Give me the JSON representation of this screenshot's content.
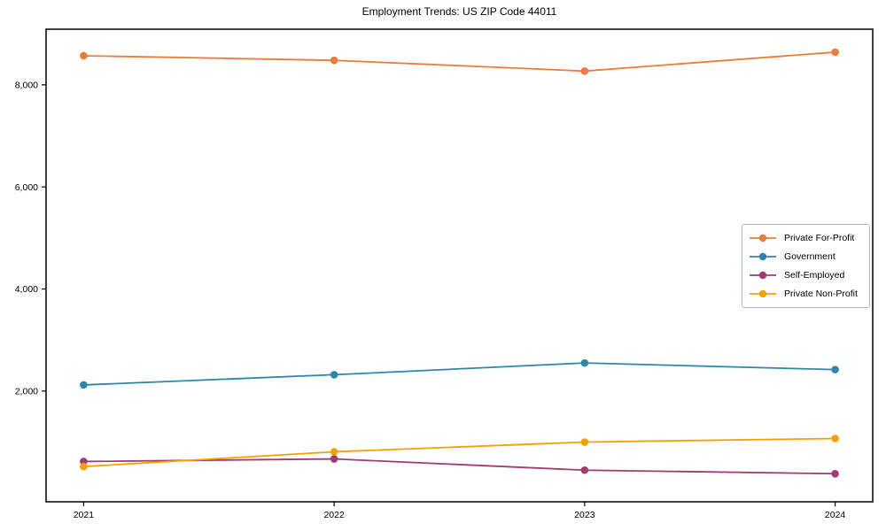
{
  "title": "Employment Trends: US ZIP Code 44011",
  "chart_data": {
    "type": "line",
    "title": "Employment Trends: US ZIP Code 44011",
    "xlabel": "",
    "ylabel": "",
    "categories": [
      "2021",
      "2022",
      "2023",
      "2024"
    ],
    "series": [
      {
        "name": "Private For-Profit",
        "color": "#E87D3C",
        "values": [
          8570,
          8480,
          8270,
          8640
        ]
      },
      {
        "name": "Government",
        "color": "#2E86AB",
        "values": [
          2120,
          2320,
          2550,
          2420
        ]
      },
      {
        "name": "Self-Employed",
        "color": "#A23B72",
        "values": [
          620,
          670,
          450,
          380
        ]
      },
      {
        "name": "Private Non-Profit",
        "color": "#F5A002",
        "values": [
          520,
          810,
          1000,
          1070
        ]
      }
    ],
    "yticks": [
      2000,
      4000,
      6000,
      8000
    ],
    "ytick_labels": [
      "2,000",
      "4,000",
      "6,000",
      "8,000"
    ],
    "ylim": [
      -170,
      9090
    ],
    "grid": false,
    "legend_position": "center-right",
    "frame_color": "#000000",
    "background": "#ffffff",
    "marker": "circle",
    "line_width": 1.8,
    "marker_radius": 4.3
  }
}
